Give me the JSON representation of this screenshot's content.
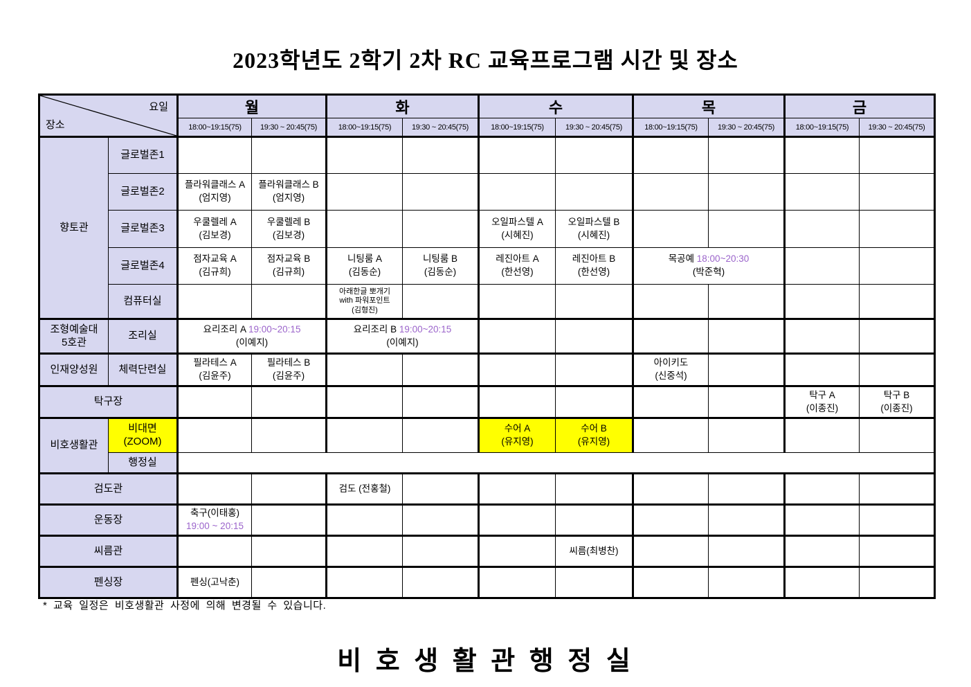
{
  "title": "2023학년도 2학기 2차 RC 교육프로그램 시간 및 장소",
  "corner": {
    "top_label": "요일",
    "bottom_label": "장소"
  },
  "days": [
    "월",
    "화",
    "수",
    "목",
    "금"
  ],
  "time_slots": [
    "18:00~19:15(75)",
    "19:30 ~ 20:45(75)"
  ],
  "colors": {
    "header_bg": "#D7D7F0",
    "highlight_bg": "#FFFF00",
    "time_text": "#9B64CB",
    "border": "#000000"
  },
  "grid": {
    "rows": [
      {
        "left": [
          {
            "lines": [
              "향토관"
            ],
            "rowspan": 5
          },
          {
            "lines": [
              "글로벌존1"
            ]
          }
        ],
        "cells": [
          {},
          {},
          {},
          {},
          {},
          {},
          {},
          {},
          {},
          {}
        ]
      },
      {
        "left": [
          {
            "lines": [
              "글로벌존2"
            ]
          }
        ],
        "cells": [
          {
            "lines": [
              [
                {
                  "text": "플라워클래스 A"
                }
              ],
              [
                {
                  "text": "(엄지영)"
                }
              ]
            ]
          },
          {
            "lines": [
              [
                {
                  "text": "플라워클래스 B"
                }
              ],
              [
                {
                  "text": "(엄지영)"
                }
              ]
            ]
          },
          {},
          {},
          {},
          {},
          {},
          {},
          {},
          {}
        ]
      },
      {
        "left": [
          {
            "lines": [
              "글로벌존3"
            ]
          }
        ],
        "cells": [
          {
            "lines": [
              [
                {
                  "text": "우쿨렐레 A"
                }
              ],
              [
                {
                  "text": "(김보경)"
                }
              ]
            ]
          },
          {
            "lines": [
              [
                {
                  "text": "우쿨렐레 B"
                }
              ],
              [
                {
                  "text": "(김보경)"
                }
              ]
            ]
          },
          {},
          {},
          {
            "lines": [
              [
                {
                  "text": "오일파스텔 A"
                }
              ],
              [
                {
                  "text": "(시혜진)"
                }
              ]
            ]
          },
          {
            "lines": [
              [
                {
                  "text": "오일파스텔 B"
                }
              ],
              [
                {
                  "text": "(시혜진)"
                }
              ]
            ]
          },
          {},
          {},
          {},
          {}
        ]
      },
      {
        "left": [
          {
            "lines": [
              "글로벌존4"
            ]
          }
        ],
        "cells": [
          {
            "lines": [
              [
                {
                  "text": "점자교육 A"
                }
              ],
              [
                {
                  "text": "(김규희)"
                }
              ]
            ]
          },
          {
            "lines": [
              [
                {
                  "text": "점자교육 B"
                }
              ],
              [
                {
                  "text": "(김규희)"
                }
              ]
            ]
          },
          {
            "lines": [
              [
                {
                  "text": "니팅룸 A"
                }
              ],
              [
                {
                  "text": "(김동순)"
                }
              ]
            ]
          },
          {
            "lines": [
              [
                {
                  "text": "니팅룸 B"
                }
              ],
              [
                {
                  "text": "(김동순)"
                }
              ]
            ]
          },
          {
            "lines": [
              [
                {
                  "text": "레진아트 A"
                }
              ],
              [
                {
                  "text": "(한선영)"
                }
              ]
            ]
          },
          {
            "lines": [
              [
                {
                  "text": "레진아트 B"
                }
              ],
              [
                {
                  "text": "(한선영)"
                }
              ]
            ]
          },
          {
            "span": 2,
            "lines": [
              [
                {
                  "text": "목공예 "
                },
                {
                  "text": "18:00~20:30",
                  "purple": true
                }
              ],
              [
                {
                  "text": "(박준혁)"
                }
              ]
            ]
          },
          {},
          {}
        ]
      },
      {
        "left": [
          {
            "lines": [
              "컴퓨터실"
            ]
          }
        ],
        "cells": [
          {},
          {},
          {
            "small": true,
            "lines": [
              [
                {
                  "text": "아래한글 뽀개기"
                }
              ],
              [
                {
                  "text": "with 파워포인트"
                }
              ],
              [
                {
                  "text": "(김형진)"
                }
              ]
            ]
          },
          {},
          {},
          {},
          {},
          {},
          {},
          {}
        ]
      },
      {
        "left": [
          {
            "lines": [
              "조형예술대",
              "5호관"
            ]
          },
          {
            "lines": [
              "조리실"
            ]
          }
        ],
        "cells": [
          {
            "span": 2,
            "lines": [
              [
                {
                  "text": "요리조리 A "
                },
                {
                  "text": "19:00~20:15",
                  "purple": true
                }
              ],
              [
                {
                  "text": "(이예지)"
                }
              ]
            ]
          },
          {
            "span": 2,
            "lines": [
              [
                {
                  "text": "요리조리 B "
                },
                {
                  "text": "19:00~20:15",
                  "purple": true
                }
              ],
              [
                {
                  "text": "(이예지)"
                }
              ]
            ]
          },
          {},
          {},
          {},
          {},
          {},
          {}
        ]
      },
      {
        "left": [
          {
            "lines": [
              "인재양성원"
            ]
          },
          {
            "lines": [
              "체력단련실"
            ]
          }
        ],
        "cells": [
          {
            "lines": [
              [
                {
                  "text": "필라테스 A"
                }
              ],
              [
                {
                  "text": "(김윤주)"
                }
              ]
            ]
          },
          {
            "lines": [
              [
                {
                  "text": "필라테스 B"
                }
              ],
              [
                {
                  "text": "(김윤주)"
                }
              ]
            ]
          },
          {},
          {},
          {},
          {},
          {
            "lines": [
              [
                {
                  "text": "아이키도"
                }
              ],
              [
                {
                  "text": "(신중석)"
                }
              ]
            ]
          },
          {},
          {},
          {}
        ]
      },
      {
        "left": [
          {
            "lines": [
              "탁구장"
            ],
            "colspan": 2
          }
        ],
        "cells": [
          {},
          {},
          {},
          {},
          {},
          {},
          {},
          {},
          {
            "lines": [
              [
                {
                  "text": "탁구 A"
                }
              ],
              [
                {
                  "text": "(이종진)"
                }
              ]
            ]
          },
          {
            "lines": [
              [
                {
                  "text": "탁구 B"
                }
              ],
              [
                {
                  "text": "(이종진)"
                }
              ]
            ]
          }
        ]
      },
      {
        "left": [
          {
            "lines": [
              "비호생활관"
            ],
            "rowspan": 2
          },
          {
            "lines": [
              "비대면",
              "(ZOOM)"
            ],
            "yellow": true
          }
        ],
        "cells": [
          {},
          {},
          {},
          {},
          {
            "yellow": true,
            "lines": [
              [
                {
                  "text": "수어 A"
                }
              ],
              [
                {
                  "text": "(유지영)"
                }
              ]
            ]
          },
          {
            "yellow": true,
            "lines": [
              [
                {
                  "text": "수어 B"
                }
              ],
              [
                {
                  "text": "(유지영)"
                }
              ]
            ]
          },
          {},
          {},
          {},
          {}
        ]
      },
      {
        "left": [
          {
            "lines": [
              "행정실"
            ]
          }
        ],
        "cells": [
          {
            "span": 10
          }
        ]
      },
      {
        "left": [
          {
            "lines": [
              "검도관"
            ],
            "colspan": 2
          }
        ],
        "cells": [
          {},
          {},
          {
            "lines": [
              [
                {
                  "text": "검도 (전홍철)"
                }
              ]
            ]
          },
          {},
          {},
          {},
          {},
          {},
          {},
          {}
        ]
      },
      {
        "left": [
          {
            "lines": [
              "운동장"
            ],
            "colspan": 2
          }
        ],
        "cells": [
          {
            "lines": [
              [
                {
                  "text": "축구(이태홍)"
                }
              ],
              [
                {
                  "text": "19:00 ~ 20:15",
                  "purple": true
                }
              ]
            ]
          },
          {},
          {},
          {},
          {},
          {},
          {},
          {},
          {},
          {}
        ]
      },
      {
        "left": [
          {
            "lines": [
              "씨름관"
            ],
            "colspan": 2
          }
        ],
        "cells": [
          {},
          {},
          {},
          {},
          {},
          {
            "lines": [
              [
                {
                  "text": "씨름(최병찬)"
                }
              ]
            ]
          },
          {},
          {},
          {},
          {}
        ]
      },
      {
        "left": [
          {
            "lines": [
              "펜싱장"
            ],
            "colspan": 2
          }
        ],
        "cells": [
          {
            "lines": [
              [
                {
                  "text": "펜싱(고낙춘)"
                }
              ]
            ]
          },
          {},
          {},
          {},
          {},
          {},
          {},
          {},
          {},
          {}
        ]
      }
    ]
  },
  "footnote": "* 교육 일정은 비호생활관 사정에 의해 변경될 수 있습니다.",
  "footer_title": "비 호 생 활 관 행 정 실"
}
